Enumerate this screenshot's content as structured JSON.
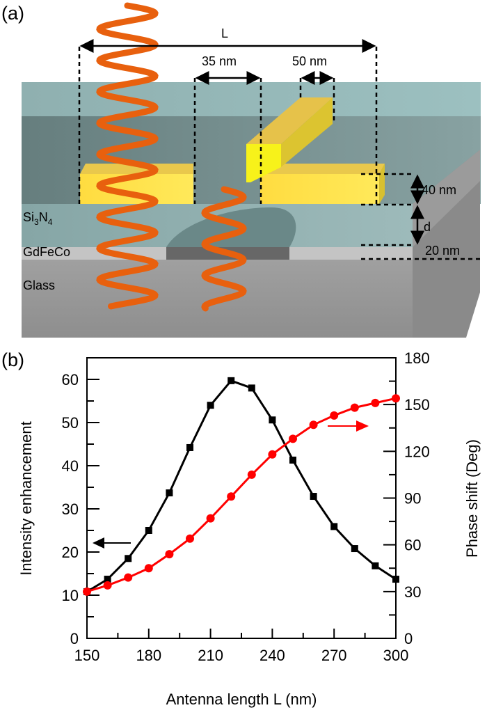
{
  "panel_a": {
    "label": "(a)",
    "dim_L": "L",
    "dim_gap": "35 nm",
    "dim_width": "50 nm",
    "dim_thickness": "40 nm",
    "dim_d": "d",
    "dim_film": "20 nm",
    "layer_si3n4_main": "Si",
    "layer_si3n4_sub1": "3",
    "layer_si3n4_n": "N",
    "layer_si3n4_sub2": "4",
    "layer_gdfeco": "GdFeCo",
    "layer_glass": "Glass",
    "colors": {
      "gold": "#ffe34d",
      "helix": "#ee6a10",
      "cladding": "#94b8b8",
      "glass": "#9a9a9a"
    }
  },
  "chart_data": {
    "label": "(b)",
    "type": "line",
    "xlabel": "Antenna length L (nm)",
    "ylabel_left": "Intensity enhancement",
    "ylabel_right": "Phase shift (Deg)",
    "xlim": [
      150,
      300
    ],
    "ylim_left": [
      0,
      65
    ],
    "ylim_right": [
      0,
      180
    ],
    "x_ticks": [
      "150",
      "180",
      "210",
      "240",
      "270",
      "300"
    ],
    "y_left_ticks": [
      "0",
      "10",
      "20",
      "30",
      "40",
      "50",
      "60"
    ],
    "y_right_ticks": [
      "0",
      "30",
      "60",
      "90",
      "120",
      "150",
      "180"
    ],
    "x": [
      150,
      160,
      170,
      180,
      190,
      200,
      210,
      220,
      230,
      240,
      250,
      260,
      270,
      280,
      290,
      300
    ],
    "series": [
      {
        "axis": "left",
        "color": "#000000",
        "marker": "square",
        "values": [
          10.8,
          13.7,
          18.5,
          25.0,
          33.7,
          44.2,
          54.0,
          59.7,
          58.0,
          50.6,
          41.3,
          32.9,
          25.9,
          20.8,
          16.8,
          13.7
        ]
      },
      {
        "axis": "right",
        "color": "#ff0000",
        "marker": "circle",
        "values": [
          30,
          34,
          39,
          45,
          54,
          64,
          77,
          91,
          105,
          118,
          128,
          137,
          143,
          148,
          151,
          154
        ]
      }
    ],
    "grid": false
  }
}
